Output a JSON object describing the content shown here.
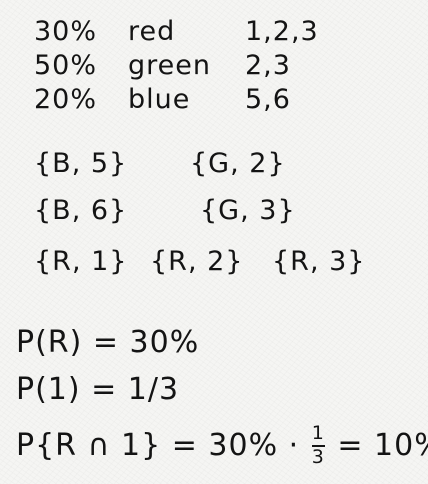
{
  "probabilities": [
    {
      "percent": "30%",
      "color": "red",
      "numbers": "1,2,3"
    },
    {
      "percent": "50%",
      "color": "green",
      "numbers": "2,3"
    },
    {
      "percent": "20%",
      "color": "blue",
      "numbers": "5,6"
    }
  ],
  "sets": {
    "b5": "{B, 5}",
    "g2": "{G, 2}",
    "b6": "{B, 6}",
    "g3": "{G, 3}",
    "r1": "{R, 1}",
    "r2": "{R, 2}",
    "r3": "{R, 3}"
  },
  "equations": {
    "p_r": "P(R) = 30%",
    "p_1": "P(1) = 1/3",
    "p_r_and_1_lhs": "P{R ∩ 1} = 30% ·",
    "frac_num": "1",
    "frac_den": "3",
    "p_r_and_1_rhs": "= 10%"
  }
}
